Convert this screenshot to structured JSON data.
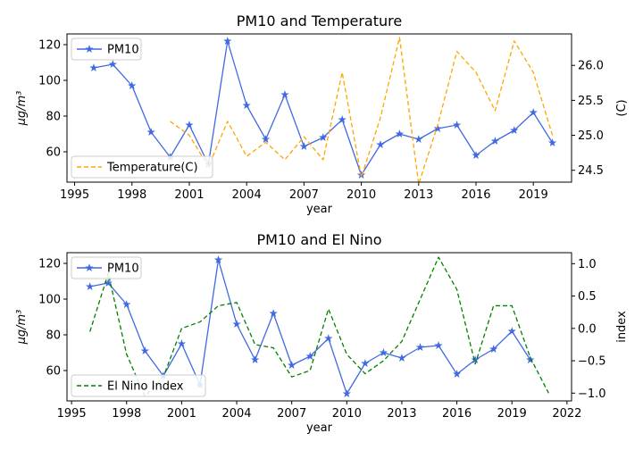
{
  "chart_data": [
    {
      "type": "line",
      "title": "PM10 and Temperature",
      "xlabel": "year",
      "ylabel": "μg/m³",
      "y2label": "(C)",
      "xlim": [
        1994.6,
        2021.0
      ],
      "ylim": [
        43,
        126
      ],
      "y2lim": [
        24.33,
        26.45
      ],
      "xticks": [
        1995,
        1998,
        2001,
        2004,
        2007,
        2010,
        2013,
        2016,
        2019
      ],
      "yticks": [
        60,
        80,
        100,
        120
      ],
      "y2ticks": [
        24.5,
        25.0,
        25.5,
        26.0
      ],
      "y2tick_labels": [
        "24.5",
        "25.0",
        "25.5",
        "26.0"
      ],
      "legend": [
        {
          "label": "PM10",
          "placement": "top-left"
        },
        {
          "label": "Temperature(C)",
          "placement": "bottom-left"
        }
      ],
      "series": [
        {
          "name": "PM10",
          "axis": "left",
          "color": "#4169e1",
          "style": "solid",
          "marker": "star",
          "x": [
            1996,
            1997,
            1998,
            1999,
            2000,
            2001,
            2002,
            2003,
            2004,
            2005,
            2006,
            2007,
            2008,
            2009,
            2010,
            2011,
            2012,
            2013,
            2014,
            2015,
            2016,
            2017,
            2018,
            2019,
            2020
          ],
          "y": [
            107,
            109,
            97,
            71,
            57,
            75,
            53,
            122,
            86,
            67,
            92,
            63,
            68,
            78,
            47,
            64,
            70,
            67,
            73,
            75,
            58,
            66,
            72,
            82,
            65
          ]
        },
        {
          "name": "Temperature(C)",
          "axis": "right",
          "color": "#ffa500",
          "style": "dashed",
          "x": [
            2000,
            2001,
            2002,
            2003,
            2004,
            2005,
            2006,
            2007,
            2008,
            2009,
            2010,
            2011,
            2012,
            2013,
            2014,
            2015,
            2016,
            2017,
            2018,
            2019,
            2020
          ],
          "y": [
            25.2,
            25.0,
            24.55,
            25.2,
            24.7,
            24.9,
            24.65,
            24.98,
            24.65,
            25.9,
            24.4,
            25.25,
            26.4,
            24.3,
            25.15,
            26.2,
            25.9,
            25.35,
            26.35,
            25.9,
            25.0
          ]
        }
      ]
    },
    {
      "type": "line",
      "title": "PM10 and El Nino",
      "xlabel": "year",
      "ylabel": "μg/m³",
      "y2label": "index",
      "xlim": [
        1994.75,
        2022.25
      ],
      "ylim": [
        43,
        126
      ],
      "y2lim": [
        -1.12,
        1.17
      ],
      "xticks": [
        1995,
        1998,
        2001,
        2004,
        2007,
        2010,
        2013,
        2016,
        2019,
        2022
      ],
      "yticks": [
        60,
        80,
        100,
        120
      ],
      "y2ticks": [
        -1.0,
        -0.5,
        0.0,
        0.5,
        1.0
      ],
      "y2tick_labels": [
        "−1.0",
        "−0.5",
        "0.0",
        "0.5",
        "1.0"
      ],
      "legend": [
        {
          "label": "PM10",
          "placement": "top-left"
        },
        {
          "label": "El Nino Index",
          "placement": "bottom-left"
        }
      ],
      "series": [
        {
          "name": "PM10",
          "axis": "left",
          "color": "#4169e1",
          "style": "solid",
          "marker": "star",
          "x": [
            1996,
            1997,
            1998,
            1999,
            2000,
            2001,
            2002,
            2003,
            2004,
            2005,
            2006,
            2007,
            2008,
            2009,
            2010,
            2011,
            2012,
            2013,
            2014,
            2015,
            2016,
            2017,
            2018,
            2019,
            2020
          ],
          "y": [
            107,
            109,
            97,
            71,
            57,
            75,
            52,
            122,
            86,
            66,
            92,
            63,
            68,
            78,
            47,
            64,
            70,
            67,
            73,
            74,
            58,
            66,
            72,
            82,
            66
          ]
        },
        {
          "name": "El Nino Index",
          "axis": "right",
          "color": "#008000",
          "style": "dashed",
          "x": [
            1996,
            1997,
            1998,
            1999,
            2000,
            2001,
            2002,
            2003,
            2004,
            2005,
            2006,
            2007,
            2008,
            2009,
            2010,
            2011,
            2012,
            2013,
            2014,
            2015,
            2016,
            2017,
            2018,
            2019,
            2020,
            2021
          ],
          "y": [
            -0.05,
            0.85,
            -0.4,
            -1.05,
            -0.75,
            0.0,
            0.1,
            0.35,
            0.4,
            -0.25,
            -0.3,
            -0.75,
            -0.65,
            0.3,
            -0.4,
            -0.7,
            -0.5,
            -0.2,
            0.45,
            1.1,
            0.6,
            -0.55,
            0.35,
            0.35,
            -0.45,
            -1.0
          ]
        }
      ]
    }
  ]
}
